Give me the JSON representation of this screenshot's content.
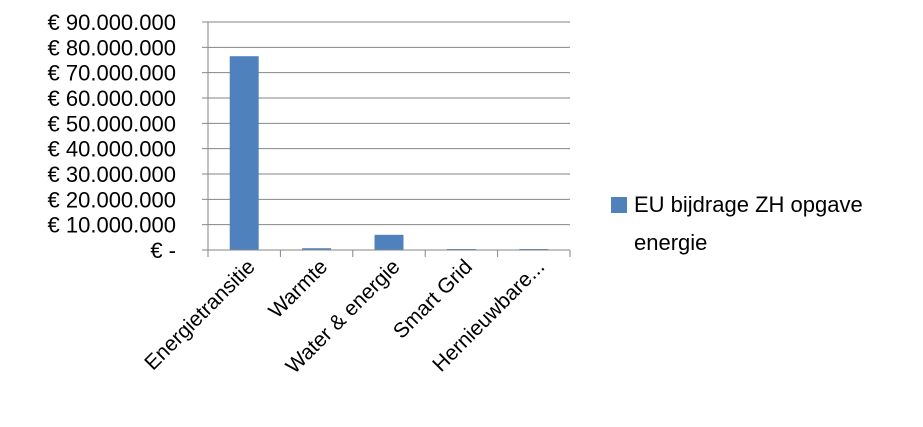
{
  "chart_data": {
    "type": "bar",
    "categories": [
      "Energietransitie",
      "Warmte",
      "Water & energie",
      "Smart Grid",
      "Hernieuwbare..."
    ],
    "series": [
      {
        "name": "EU bijdrage ZH opgave energie",
        "values": [
          76500000,
          700000,
          6000000,
          150000,
          50000
        ],
        "color": "#4f81bd"
      }
    ],
    "y_tick_labels": [
      "€ -",
      "€ 10.000.000",
      "€ 20.000.000",
      "€ 30.000.000",
      "€ 40.000.000",
      "€ 50.000.000",
      "€ 60.000.000",
      "€ 70.000.000",
      "€ 80.000.000",
      "€ 90.000.000"
    ],
    "ylim": [
      0,
      90000000
    ],
    "y_step": 10000000,
    "grid": true,
    "legend_position": "right",
    "legend_lines": [
      "EU bijdrage ZH opgave",
      "energie"
    ]
  }
}
